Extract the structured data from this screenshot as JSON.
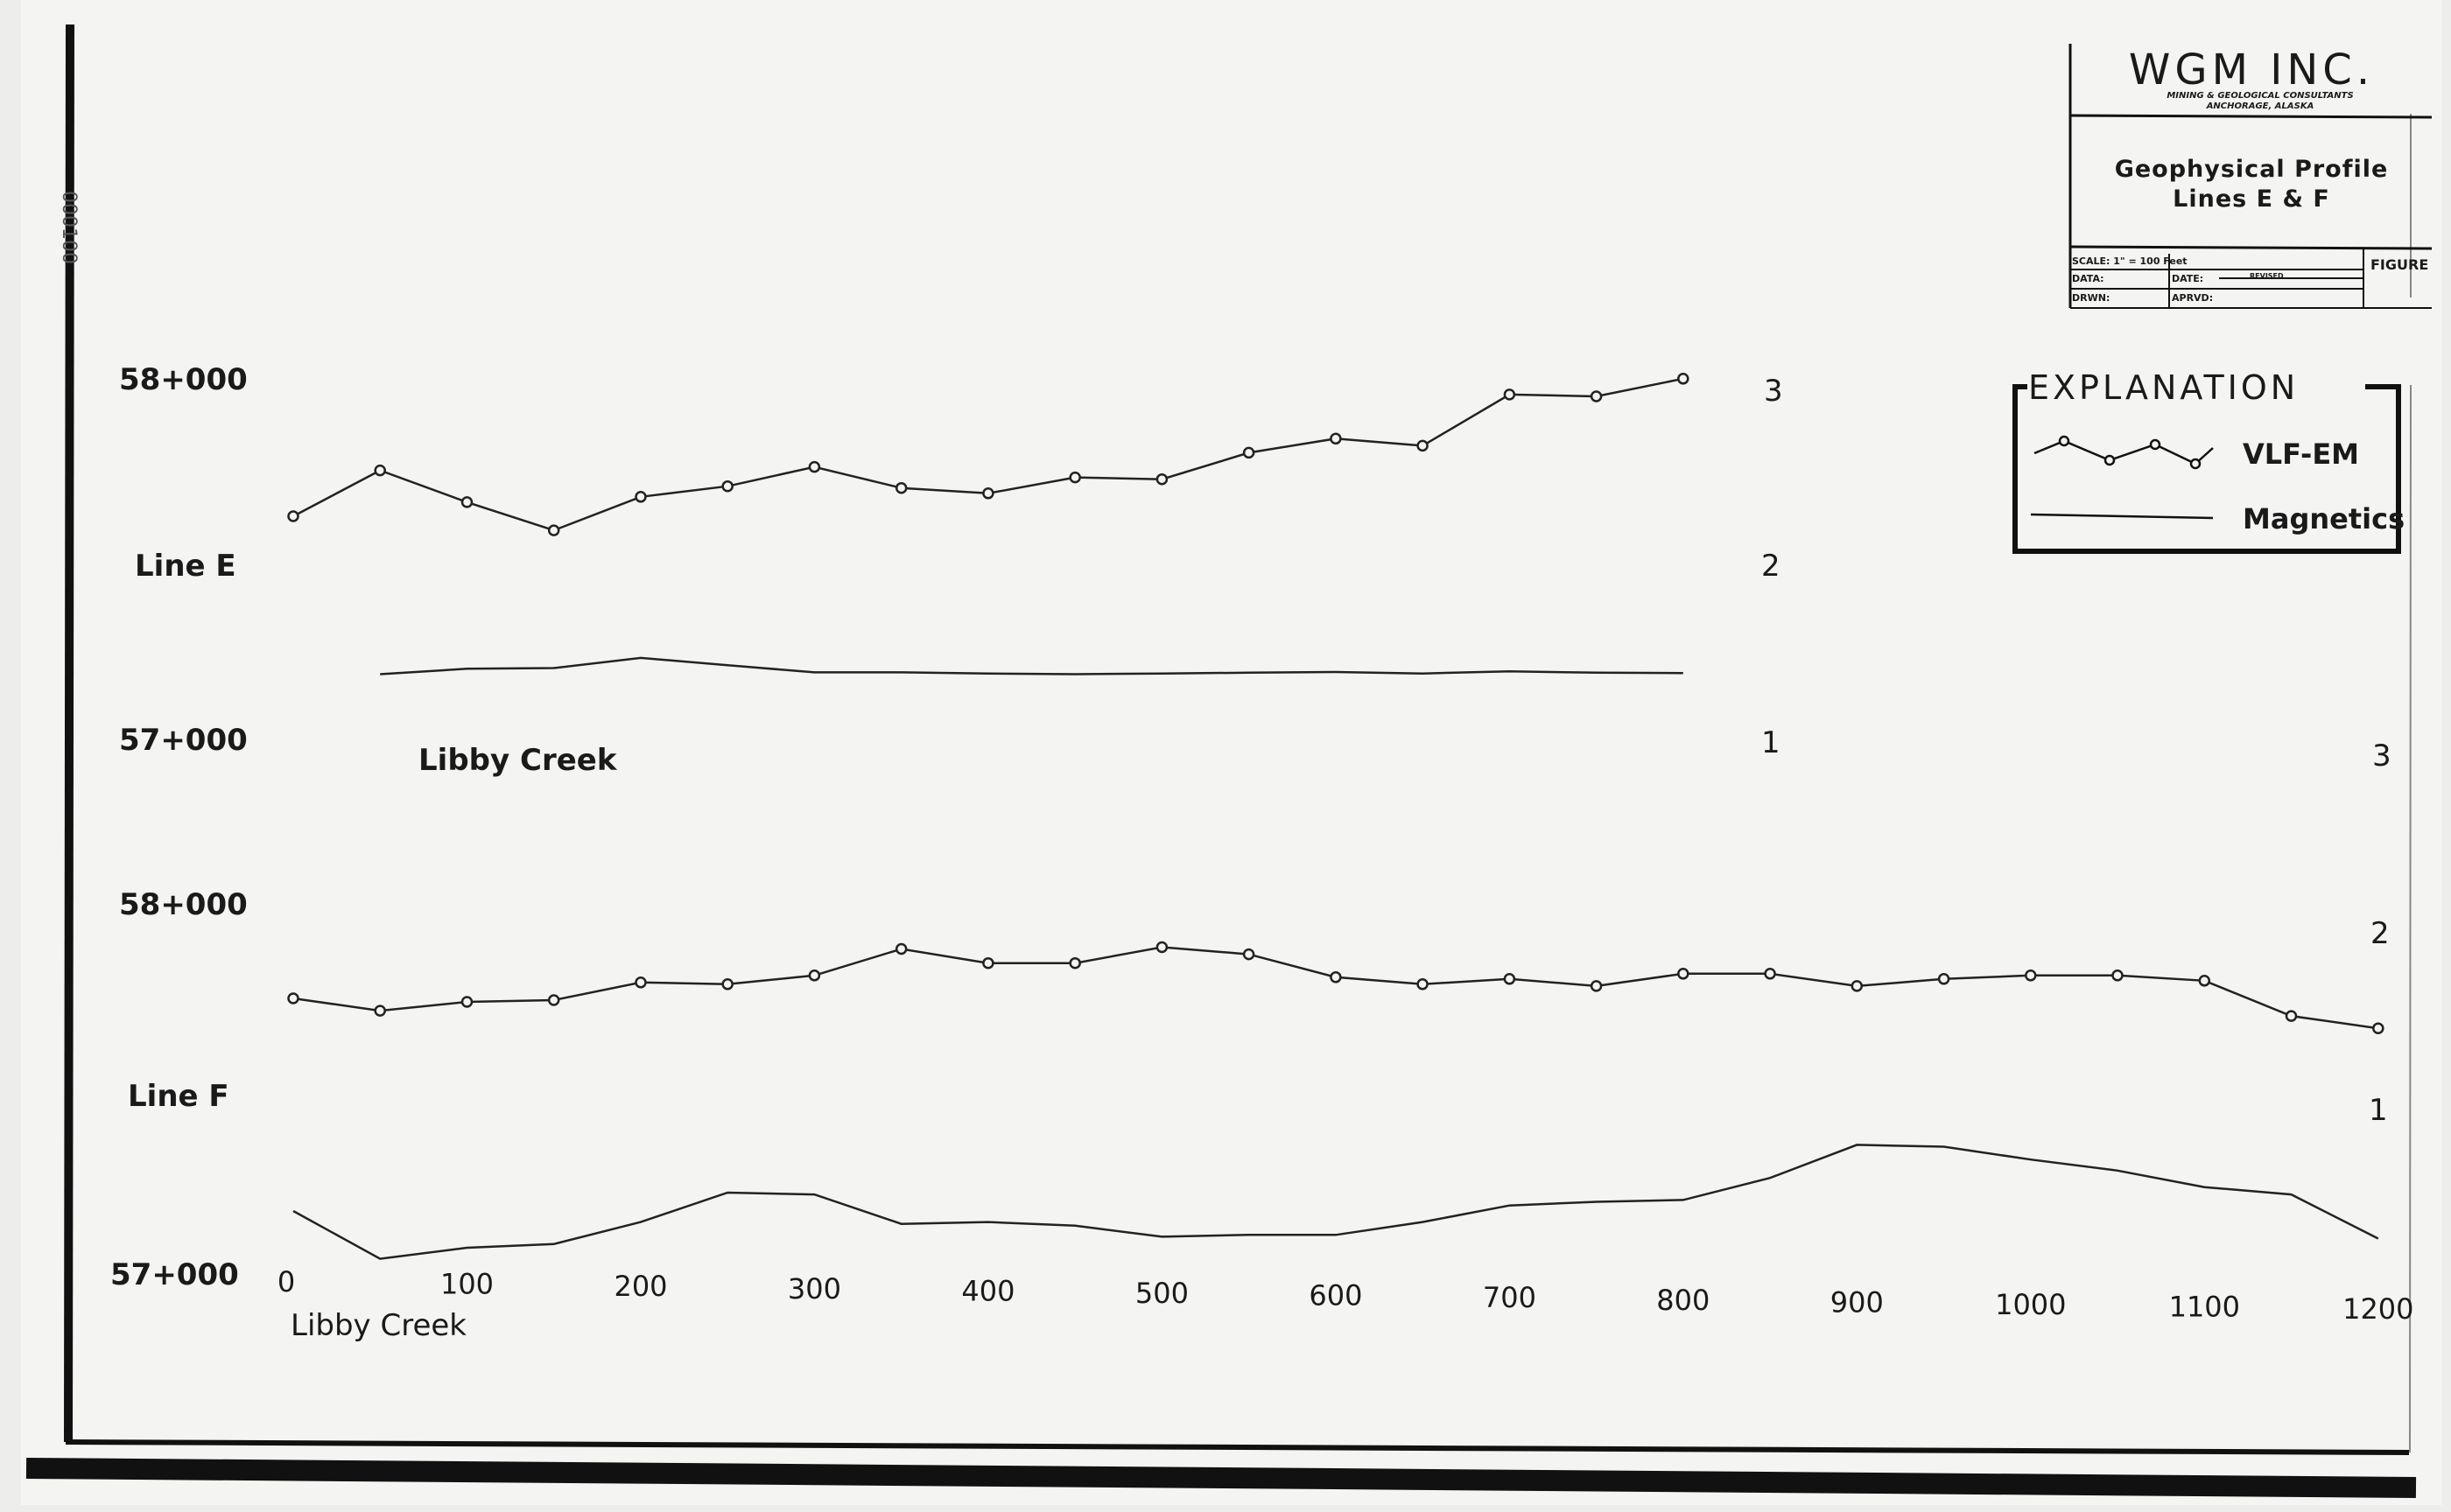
{
  "title_block": {
    "company": "WGM INC.",
    "company_sub1": "MINING & GEOLOGICAL CONSULTANTS",
    "company_sub2": "ANCHORAGE, ALASKA",
    "title_line1": "Geophysical Profile",
    "title_line2": "Lines E & F",
    "scale": "SCALE: 1\" = 100 Feet",
    "figure": "FIGURE",
    "data": "DATA:",
    "date": "DATE:",
    "revised": "REVISED",
    "drwn": "DRWN:",
    "aprvd": "APRVD:"
  },
  "side_stamp": "000100",
  "explanation": {
    "title": "EXPLANATION",
    "vlf_label": "VLF-EM",
    "mag_label": "Magnetics",
    "vlf_icon": "circle-marker-line",
    "mag_icon": "plain-line"
  },
  "chart_data": [
    {
      "type": "line",
      "title": "Line E",
      "creek_label": "Libby Creek",
      "mag_axis_ticks": [
        "58+000",
        "57+000"
      ],
      "vlf_axis_ticks": [
        "3",
        "2",
        "1"
      ],
      "series": [
        {
          "name": "VLF-EM",
          "x": [
            0,
            50,
            100,
            150,
            200,
            250,
            300,
            350,
            400,
            450,
            500,
            550,
            600,
            650,
            700,
            750,
            800
          ],
          "y": [
            2.35,
            2.61,
            2.43,
            2.27,
            2.46,
            2.52,
            2.63,
            2.51,
            2.48,
            2.57,
            2.56,
            2.71,
            2.79,
            2.75,
            3.04,
            3.03,
            3.13
          ]
        },
        {
          "name": "Magnetics",
          "x": [
            50,
            100,
            150,
            200,
            250,
            300,
            350,
            400,
            450,
            500,
            550,
            600,
            650,
            700,
            750,
            800
          ],
          "y": [
            57210,
            57225,
            57227,
            57255,
            57235,
            57215,
            57215,
            57212,
            57210,
            57212,
            57214,
            57216,
            57212,
            57218,
            57214,
            57213
          ]
        }
      ],
      "vlf_ylim": [
        1,
        3
      ],
      "mag_ylim": [
        57000,
        58000
      ]
    },
    {
      "type": "line",
      "title": "Line F",
      "creek_label": "Libby Creek",
      "mag_axis_ticks": [
        "58+000",
        "57+000"
      ],
      "vlf_axis_ticks": [
        "3",
        "2",
        "1"
      ],
      "x_ticks": [
        0,
        100,
        200,
        300,
        400,
        500,
        600,
        700,
        800,
        900,
        1000,
        1100,
        1200
      ],
      "series": [
        {
          "name": "VLF-EM",
          "x": [
            0,
            50,
            100,
            150,
            200,
            250,
            300,
            350,
            400,
            450,
            500,
            550,
            600,
            650,
            700,
            750,
            800,
            850,
            900,
            950,
            1000,
            1050,
            1100,
            1150,
            1200
          ],
          "y": [
            1.69,
            1.62,
            1.67,
            1.68,
            1.78,
            1.77,
            1.82,
            1.97,
            1.89,
            1.89,
            1.98,
            1.94,
            1.81,
            1.77,
            1.8,
            1.76,
            1.83,
            1.83,
            1.76,
            1.8,
            1.82,
            1.82,
            1.79,
            1.59,
            1.52
          ]
        },
        {
          "name": "Magnetics",
          "x": [
            0,
            50,
            100,
            150,
            200,
            250,
            300,
            350,
            400,
            450,
            500,
            550,
            600,
            650,
            700,
            750,
            800,
            850,
            900,
            950,
            1000,
            1050,
            1100,
            1150,
            1200
          ],
          "y": [
            57200,
            57070,
            57100,
            57110,
            57170,
            57250,
            57245,
            57165,
            57170,
            57160,
            57130,
            57135,
            57135,
            57170,
            57215,
            57225,
            57230,
            57290,
            57380,
            57375,
            57340,
            57310,
            57265,
            57245,
            57125
          ]
        }
      ],
      "vlf_ylim": [
        1,
        3
      ],
      "mag_ylim": [
        57000,
        58000
      ]
    }
  ]
}
